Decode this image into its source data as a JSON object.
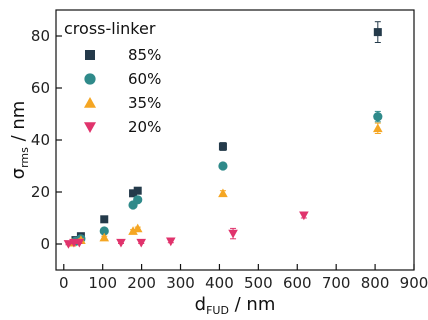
{
  "chart_data": {
    "type": "scatter",
    "title": "",
    "xlabel": {
      "main": "d",
      "sub": "FUD",
      "unit": " / nm"
    },
    "ylabel": {
      "main": "σ",
      "sub": "rms",
      "unit": " / nm"
    },
    "xlim": [
      -20,
      900
    ],
    "ylim": [
      -10,
      90
    ],
    "xticks": [
      0,
      100,
      200,
      300,
      400,
      500,
      600,
      700,
      800,
      900
    ],
    "yticks": [
      0,
      20,
      40,
      60,
      80
    ],
    "grid": false,
    "legend": {
      "title": "cross-linker",
      "placement": "top-left"
    },
    "series": [
      {
        "name": "85%",
        "color": "#243a4a",
        "marker": "square",
        "points": [
          {
            "x": 30,
            "y": 1.5,
            "err": 1
          },
          {
            "x": 44,
            "y": 3,
            "err": 1
          },
          {
            "x": 104,
            "y": 9.5,
            "err": 0.8
          },
          {
            "x": 178,
            "y": 19.5,
            "err": 1
          },
          {
            "x": 190,
            "y": 20.5,
            "err": 1
          },
          {
            "x": 409,
            "y": 37.5,
            "err": 1.5
          },
          {
            "x": 807,
            "y": 81.5,
            "err": 4
          }
        ]
      },
      {
        "name": "60%",
        "color": "#2f8a8a",
        "marker": "circle",
        "points": [
          {
            "x": 30,
            "y": 1,
            "err": 0.5
          },
          {
            "x": 44,
            "y": 2,
            "err": 0.5
          },
          {
            "x": 104,
            "y": 5,
            "err": 0.5
          },
          {
            "x": 178,
            "y": 15,
            "err": 0.8
          },
          {
            "x": 190,
            "y": 17,
            "err": 0.8
          },
          {
            "x": 409,
            "y": 30,
            "err": 1
          },
          {
            "x": 807,
            "y": 49,
            "err": 2
          }
        ]
      },
      {
        "name": "35%",
        "color": "#f5a623",
        "marker": "triangle-up",
        "points": [
          {
            "x": 20,
            "y": 0.5,
            "err": 0.5
          },
          {
            "x": 44,
            "y": 1.5,
            "err": 0.5
          },
          {
            "x": 104,
            "y": 2.5,
            "err": 0.5
          },
          {
            "x": 178,
            "y": 5,
            "err": 0.5
          },
          {
            "x": 190,
            "y": 6,
            "err": 0.5
          },
          {
            "x": 409,
            "y": 19.5,
            "err": 1
          },
          {
            "x": 807,
            "y": 44.5,
            "err": 2
          }
        ]
      },
      {
        "name": "20%",
        "color": "#e0336c",
        "marker": "triangle-down",
        "points": [
          {
            "x": 12,
            "y": 0,
            "err": 0.3
          },
          {
            "x": 26,
            "y": 0.5,
            "err": 0.3
          },
          {
            "x": 40,
            "y": 0.5,
            "err": 0.3
          },
          {
            "x": 147,
            "y": 0.5,
            "err": 0.3
          },
          {
            "x": 199,
            "y": 0.5,
            "err": 0.3
          },
          {
            "x": 275,
            "y": 1,
            "err": 0.5
          },
          {
            "x": 435,
            "y": 4,
            "err": 2
          },
          {
            "x": 617,
            "y": 11,
            "err": 1
          }
        ]
      }
    ]
  }
}
